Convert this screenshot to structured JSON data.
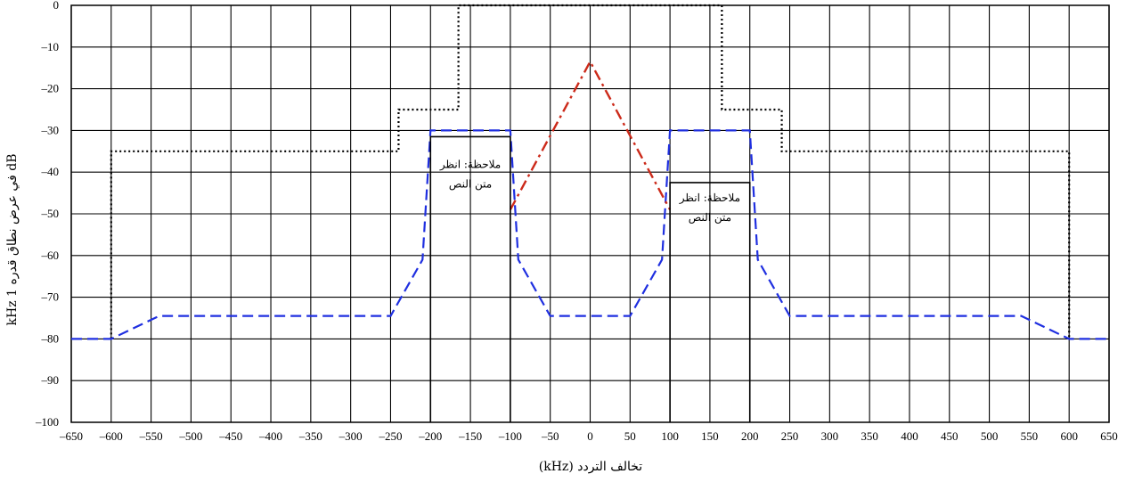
{
  "chart_data": {
    "type": "line",
    "xlabel": "تخالف التردد (kHz)",
    "ylabel": "dB في عرض نطاق قدره 1 kHz",
    "xlim": [
      -650,
      650
    ],
    "ylim": [
      -100,
      0
    ],
    "x_ticks": [
      -650,
      -600,
      -550,
      -500,
      -450,
      -400,
      -350,
      -300,
      -250,
      -200,
      -150,
      -100,
      -50,
      0,
      50,
      100,
      150,
      200,
      250,
      300,
      350,
      400,
      450,
      500,
      550,
      600,
      650
    ],
    "y_ticks": [
      0,
      -10,
      -20,
      -30,
      -40,
      -50,
      -60,
      -70,
      -80,
      -90,
      -100
    ],
    "y_tick_labels": [
      "0",
      "–10",
      "–20",
      "–30",
      "–40",
      "–50",
      "–60",
      "–70",
      "–80",
      "–90",
      "–100"
    ],
    "x_tick_labels": [
      "–650",
      "–600",
      "–550",
      "–500",
      "–450",
      "–400",
      "–350",
      "–300",
      "–250",
      "–200",
      "–150",
      "–100",
      "–50",
      "0",
      "50",
      "100",
      "150",
      "200",
      "250",
      "300",
      "350",
      "400",
      "450",
      "500",
      "550",
      "600",
      "650"
    ],
    "grid": true,
    "series": [
      {
        "style": "dotted",
        "color": "#000000",
        "x": [
          -600,
          -600,
          -240,
          -240,
          -165,
          -165,
          165,
          165,
          240,
          240,
          600,
          600
        ],
        "y": [
          -80,
          -35,
          -35,
          -25,
          -25,
          0,
          0,
          -25,
          -25,
          -35,
          -35,
          -80
        ]
      },
      {
        "style": "dashed",
        "color": "#1f2fe0",
        "x": [
          -650,
          -600,
          -540,
          -250,
          -210,
          -200,
          -100,
          -90,
          -50,
          50,
          90,
          100,
          200,
          210,
          250,
          540,
          600,
          650
        ],
        "y": [
          -80,
          -80,
          -74.5,
          -74.5,
          -61,
          -30,
          -30,
          -61,
          -74.5,
          -74.5,
          -61,
          -30,
          -30,
          -61,
          -74.5,
          -74.5,
          -80,
          -80
        ]
      },
      {
        "style": "dashdot",
        "color": "#cc2a1a",
        "x": [
          -100,
          0,
          100
        ],
        "y": [
          -49,
          -13.5,
          -49
        ]
      },
      {
        "style": "solid",
        "color": "#000000",
        "x": [
          -200,
          -200,
          -100,
          -100
        ],
        "y": [
          -100,
          -31.5,
          -31.5,
          -100
        ]
      },
      {
        "style": "solid",
        "color": "#000000",
        "x": [
          100,
          100,
          200,
          200
        ],
        "y": [
          -100,
          -42.5,
          -42.5,
          -100
        ]
      }
    ],
    "annotations": [
      {
        "lines": [
          "ملاحظة: انظر",
          "متن النص"
        ],
        "x": -150,
        "y": -39
      },
      {
        "lines": [
          "ملاحظة: انظر",
          "متن النص"
        ],
        "x": 150,
        "y": -47
      }
    ]
  }
}
